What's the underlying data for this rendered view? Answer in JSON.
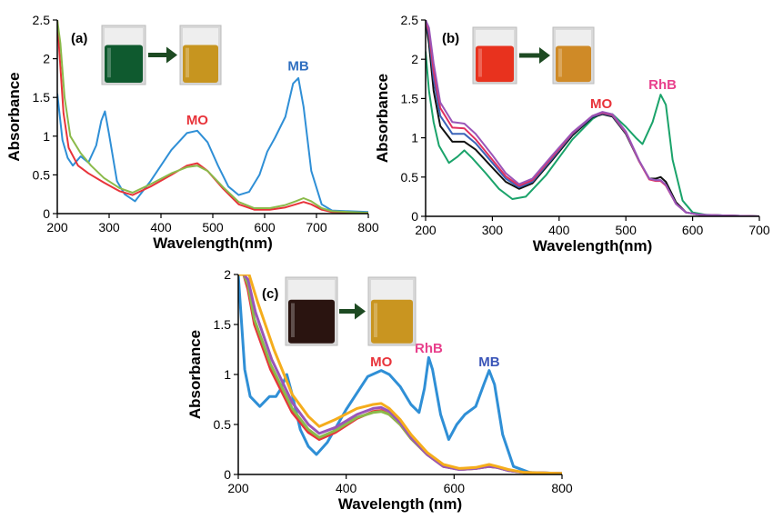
{
  "chart_data": [
    {
      "type": "line",
      "panel": "(a)",
      "xlabel": "Wavelength(nm)",
      "ylabel": "Absorbance",
      "xlim": [
        200,
        800
      ],
      "ylim": [
        0,
        2.5
      ],
      "xticks": [
        200,
        300,
        400,
        500,
        600,
        700,
        800
      ],
      "yticks": [
        0,
        0.5,
        1,
        1.5,
        2,
        2.5
      ],
      "ytick_labels": [
        "0",
        "0.5",
        "1",
        "1.5",
        "2",
        "2.5"
      ],
      "annotations": [
        {
          "text": "MO",
          "x": 470,
          "y": 1.15,
          "color": "#e8333a"
        },
        {
          "text": "MB",
          "x": 665,
          "y": 1.85,
          "color": "#2f6fc0"
        }
      ],
      "inset": {
        "before_color": "#0f5a2f",
        "after_color": "#c7951f"
      },
      "series": [
        {
          "color": "#2f8fd6",
          "x": [
            200,
            210,
            220,
            230,
            245,
            260,
            275,
            285,
            292,
            300,
            315,
            330,
            350,
            380,
            420,
            450,
            470,
            490,
            510,
            530,
            550,
            570,
            590,
            605,
            620,
            640,
            655,
            665,
            675,
            690,
            710,
            730,
            800
          ],
          "y": [
            1.55,
            0.95,
            0.72,
            0.62,
            0.74,
            0.66,
            0.88,
            1.2,
            1.32,
            1.02,
            0.42,
            0.25,
            0.16,
            0.42,
            0.82,
            1.04,
            1.07,
            0.92,
            0.62,
            0.35,
            0.24,
            0.28,
            0.5,
            0.8,
            0.98,
            1.25,
            1.68,
            1.75,
            1.38,
            0.55,
            0.12,
            0.04,
            0.02
          ]
        },
        {
          "color": "#e8333a",
          "x": [
            200,
            205,
            212,
            222,
            240,
            260,
            290,
            320,
            345,
            380,
            420,
            450,
            470,
            490,
            520,
            550,
            580,
            610,
            640,
            660,
            675,
            690,
            710,
            730,
            800
          ],
          "y": [
            2.5,
            2.0,
            1.3,
            0.85,
            0.62,
            0.52,
            0.4,
            0.29,
            0.24,
            0.35,
            0.5,
            0.62,
            0.65,
            0.55,
            0.32,
            0.12,
            0.05,
            0.05,
            0.08,
            0.12,
            0.15,
            0.12,
            0.05,
            0.02,
            0.01
          ]
        },
        {
          "color": "#8bba4a",
          "x": [
            200,
            206,
            214,
            225,
            245,
            265,
            290,
            320,
            345,
            380,
            420,
            450,
            470,
            490,
            520,
            550,
            580,
            610,
            640,
            660,
            675,
            690,
            710,
            730,
            800
          ],
          "y": [
            2.5,
            2.2,
            1.5,
            1.0,
            0.78,
            0.62,
            0.46,
            0.33,
            0.27,
            0.38,
            0.52,
            0.6,
            0.62,
            0.55,
            0.34,
            0.15,
            0.07,
            0.07,
            0.11,
            0.16,
            0.2,
            0.16,
            0.07,
            0.03,
            0.01
          ]
        }
      ]
    },
    {
      "type": "line",
      "panel": "(b)",
      "xlabel": "Wavelength(nm)",
      "ylabel": "Absorbance",
      "xlim": [
        200,
        700
      ],
      "ylim": [
        0,
        2.5
      ],
      "xticks": [
        200,
        300,
        400,
        500,
        600,
        700
      ],
      "yticks": [
        0,
        0.5,
        1,
        1.5,
        2,
        2.5
      ],
      "ytick_labels": [
        "0",
        "0.5",
        "1",
        "1.5",
        "2",
        "2.5"
      ],
      "annotations": [
        {
          "text": "MO",
          "x": 463,
          "y": 1.38,
          "color": "#e8333a"
        },
        {
          "text": "RhB",
          "x": 555,
          "y": 1.62,
          "color": "#e8408c"
        }
      ],
      "inset": {
        "before_color": "#e8321e",
        "after_color": "#cf8a27"
      },
      "series": [
        {
          "color": "#1aa36a",
          "x": [
            200,
            205,
            212,
            220,
            235,
            248,
            258,
            270,
            290,
            310,
            330,
            350,
            380,
            420,
            450,
            465,
            480,
            500,
            515,
            525,
            540,
            552,
            560,
            570,
            585,
            600,
            620,
            650,
            700
          ],
          "y": [
            2.1,
            1.6,
            1.2,
            0.9,
            0.68,
            0.76,
            0.84,
            0.74,
            0.55,
            0.35,
            0.22,
            0.25,
            0.52,
            0.98,
            1.24,
            1.32,
            1.3,
            1.14,
            1.0,
            0.92,
            1.2,
            1.55,
            1.42,
            0.72,
            0.2,
            0.05,
            0.02,
            0.01,
            0.0
          ]
        },
        {
          "color": "#111111",
          "x": [
            200,
            205,
            212,
            222,
            240,
            258,
            275,
            300,
            320,
            340,
            360,
            390,
            420,
            450,
            465,
            480,
            500,
            520,
            535,
            545,
            552,
            560,
            575,
            590,
            610,
            650,
            700
          ],
          "y": [
            2.5,
            2.2,
            1.6,
            1.15,
            0.95,
            0.95,
            0.85,
            0.62,
            0.44,
            0.35,
            0.42,
            0.72,
            1.03,
            1.26,
            1.3,
            1.27,
            1.05,
            0.7,
            0.48,
            0.48,
            0.5,
            0.44,
            0.18,
            0.05,
            0.02,
            0.01,
            0.0
          ]
        },
        {
          "color": "#3a63b8",
          "x": [
            200,
            205,
            212,
            222,
            240,
            258,
            275,
            300,
            320,
            340,
            360,
            390,
            420,
            450,
            465,
            480,
            500,
            520,
            535,
            545,
            552,
            560,
            575,
            590,
            610,
            650,
            700
          ],
          "y": [
            2.5,
            2.3,
            1.75,
            1.28,
            1.05,
            1.05,
            0.93,
            0.68,
            0.48,
            0.37,
            0.44,
            0.74,
            1.05,
            1.27,
            1.31,
            1.28,
            1.06,
            0.7,
            0.48,
            0.46,
            0.46,
            0.4,
            0.16,
            0.05,
            0.02,
            0.01,
            0.0
          ]
        },
        {
          "color": "#e03060",
          "x": [
            200,
            205,
            212,
            222,
            240,
            258,
            275,
            300,
            320,
            340,
            360,
            390,
            420,
            450,
            465,
            480,
            500,
            520,
            535,
            545,
            552,
            560,
            575,
            590,
            610,
            650,
            700
          ],
          "y": [
            2.5,
            2.35,
            1.85,
            1.38,
            1.13,
            1.12,
            0.98,
            0.72,
            0.51,
            0.39,
            0.46,
            0.76,
            1.06,
            1.28,
            1.32,
            1.29,
            1.07,
            0.7,
            0.47,
            0.45,
            0.45,
            0.39,
            0.16,
            0.05,
            0.02,
            0.01,
            0.0
          ]
        },
        {
          "color": "#9a55b8",
          "x": [
            200,
            205,
            212,
            222,
            240,
            258,
            275,
            300,
            320,
            340,
            360,
            390,
            420,
            450,
            465,
            480,
            500,
            520,
            535,
            545,
            552,
            560,
            575,
            590,
            610,
            650,
            700
          ],
          "y": [
            2.5,
            2.4,
            1.95,
            1.45,
            1.2,
            1.18,
            1.05,
            0.78,
            0.55,
            0.41,
            0.48,
            0.78,
            1.07,
            1.28,
            1.33,
            1.3,
            1.08,
            0.71,
            0.48,
            0.46,
            0.46,
            0.4,
            0.16,
            0.05,
            0.02,
            0.01,
            0.0
          ]
        }
      ]
    },
    {
      "type": "line",
      "panel": "(c)",
      "xlabel": "Wavelength (nm)",
      "ylabel": "Absorbance",
      "xlim": [
        200,
        800
      ],
      "ylim": [
        0,
        2
      ],
      "xticks": [
        200,
        400,
        600,
        800
      ],
      "yticks": [
        0,
        0.5,
        1,
        1.5,
        2
      ],
      "ytick_labels": [
        "0",
        "0.5",
        "1",
        "1.5",
        "2"
      ],
      "annotations": [
        {
          "text": "MO",
          "x": 465,
          "y": 1.08,
          "color": "#e8333a"
        },
        {
          "text": "RhB",
          "x": 553,
          "y": 1.22,
          "color": "#e8408c"
        },
        {
          "text": "MB",
          "x": 665,
          "y": 1.08,
          "color": "#3a55b8"
        }
      ],
      "inset": {
        "before_color": "#2a1410",
        "after_color": "#c99520"
      },
      "series": [
        {
          "color": "#2f8fd6",
          "x": [
            200,
            205,
            212,
            222,
            240,
            258,
            270,
            278,
            290,
            300,
            315,
            330,
            345,
            365,
            400,
            440,
            465,
            480,
            500,
            520,
            535,
            545,
            553,
            560,
            575,
            590,
            605,
            620,
            640,
            655,
            665,
            675,
            690,
            710,
            740,
            800
          ],
          "y": [
            2.0,
            1.6,
            1.05,
            0.78,
            0.68,
            0.78,
            0.78,
            0.85,
            1.0,
            0.8,
            0.45,
            0.28,
            0.2,
            0.32,
            0.65,
            0.98,
            1.04,
            1.0,
            0.88,
            0.7,
            0.62,
            0.86,
            1.17,
            1.05,
            0.6,
            0.35,
            0.5,
            0.6,
            0.68,
            0.9,
            1.04,
            0.9,
            0.4,
            0.08,
            0.02,
            0.01
          ]
        },
        {
          "color": "#e8333a",
          "x": [
            200,
            210,
            218,
            230,
            260,
            300,
            330,
            350,
            380,
            420,
            450,
            465,
            480,
            500,
            520,
            550,
            580,
            610,
            640,
            665,
            680,
            700,
            730,
            800
          ],
          "y": [
            2.0,
            2.0,
            1.85,
            1.5,
            1.05,
            0.62,
            0.42,
            0.35,
            0.42,
            0.56,
            0.63,
            0.64,
            0.6,
            0.5,
            0.36,
            0.2,
            0.08,
            0.05,
            0.06,
            0.08,
            0.07,
            0.04,
            0.02,
            0.01
          ]
        },
        {
          "color": "#8bba4a",
          "x": [
            200,
            210,
            218,
            230,
            260,
            300,
            330,
            350,
            380,
            420,
            450,
            465,
            480,
            500,
            520,
            550,
            580,
            610,
            640,
            665,
            680,
            700,
            730,
            800
          ],
          "y": [
            2.0,
            2.0,
            1.9,
            1.55,
            1.1,
            0.66,
            0.45,
            0.37,
            0.44,
            0.57,
            0.62,
            0.63,
            0.6,
            0.5,
            0.36,
            0.2,
            0.08,
            0.05,
            0.06,
            0.08,
            0.07,
            0.04,
            0.02,
            0.01
          ]
        },
        {
          "color": "#9a55b8",
          "x": [
            200,
            210,
            218,
            232,
            262,
            300,
            330,
            350,
            380,
            420,
            450,
            465,
            480,
            500,
            520,
            550,
            580,
            610,
            640,
            665,
            680,
            700,
            730,
            800
          ],
          "y": [
            2.0,
            2.0,
            1.95,
            1.62,
            1.15,
            0.72,
            0.5,
            0.41,
            0.47,
            0.6,
            0.66,
            0.67,
            0.63,
            0.52,
            0.37,
            0.2,
            0.08,
            0.05,
            0.06,
            0.08,
            0.07,
            0.04,
            0.02,
            0.01
          ]
        },
        {
          "color": "#f5ad1c",
          "x": [
            200,
            210,
            220,
            236,
            266,
            300,
            330,
            350,
            380,
            420,
            450,
            465,
            480,
            500,
            520,
            550,
            580,
            610,
            640,
            665,
            680,
            700,
            730,
            800
          ],
          "y": [
            2.0,
            2.0,
            2.0,
            1.72,
            1.25,
            0.8,
            0.58,
            0.48,
            0.55,
            0.66,
            0.7,
            0.71,
            0.66,
            0.55,
            0.4,
            0.22,
            0.1,
            0.06,
            0.07,
            0.1,
            0.08,
            0.05,
            0.02,
            0.01
          ]
        }
      ]
    }
  ]
}
